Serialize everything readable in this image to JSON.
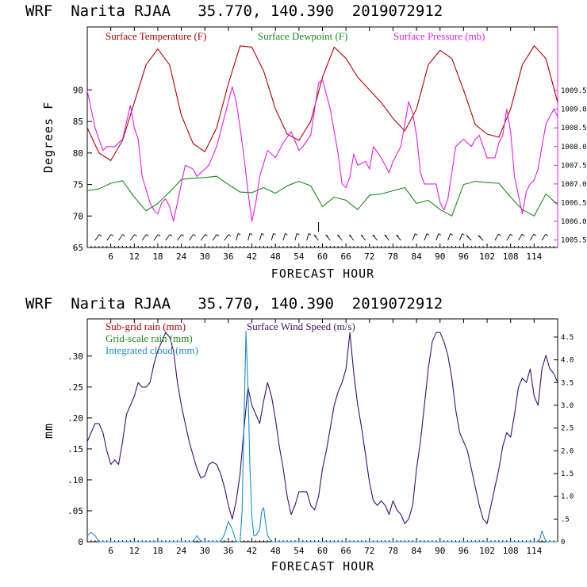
{
  "colors": {
    "temperature": "#b00000",
    "dewpoint": "#1a8a1a",
    "pressure": "#e020e0",
    "subgrid_rain": "#b00000",
    "gridscale_rain": "#1a8a1a",
    "cloud": "#1a8fd0",
    "wind": "#3a1070"
  },
  "chart_data": [
    {
      "type": "line",
      "title": "WRF  Narita RJAA   35.770, 140.390  2019072912",
      "xlabel": "FORECAST HOUR",
      "ylabel": "Degrees F",
      "xlim": [
        0,
        120
      ],
      "ylim": [
        65,
        100
      ],
      "y2lim": [
        1005.3,
        1011.2
      ],
      "xticks": [
        6,
        12,
        18,
        24,
        30,
        36,
        42,
        48,
        54,
        60,
        66,
        72,
        78,
        84,
        90,
        96,
        102,
        108,
        114
      ],
      "xtick_labels": [
        "6",
        "12",
        "18",
        "24",
        "30",
        "36",
        "42",
        "48",
        "54",
        "60",
        "66",
        "72",
        "78",
        "84",
        "90",
        "96",
        "102",
        "108",
        "114"
      ],
      "yticks": [
        65,
        70,
        75,
        80,
        85,
        90
      ],
      "ytick_labels": [
        "65",
        "70",
        "75",
        "80",
        "85",
        "90"
      ],
      "y2ticks": [
        1005.5,
        1006.0,
        1006.5,
        1007.0,
        1007.5,
        1008.0,
        1008.5,
        1009.0,
        1009.5
      ],
      "y2tick_labels": [
        "1005.5",
        "1006.0",
        "1006.5",
        "1007.0",
        "1007.5",
        "1008.0",
        "1008.5",
        "1009.0",
        "1009.5"
      ],
      "legend": [
        "Surface Temperature (F)",
        "Surface Dewpoint (F)",
        "Surface Pressure (mb)"
      ],
      "series": [
        {
          "name": "Surface Temperature (F)",
          "axis": "left",
          "x": [
            0,
            3,
            6,
            9,
            12,
            15,
            18,
            21,
            24,
            27,
            30,
            33,
            36,
            39,
            42,
            45,
            48,
            51,
            54,
            57,
            60,
            63,
            66,
            69,
            72,
            75,
            78,
            81,
            84,
            87,
            90,
            93,
            96,
            99,
            102,
            105,
            108,
            111,
            114,
            117,
            120
          ],
          "y": [
            84,
            80,
            78.8,
            82,
            88,
            94,
            96.5,
            94,
            86,
            81.5,
            80.2,
            84,
            91,
            97,
            96.8,
            93,
            87,
            83,
            82,
            85,
            92,
            96.8,
            95,
            92,
            90,
            88,
            85.5,
            83.5,
            87,
            94,
            96.3,
            95,
            90,
            84.5,
            83,
            82.5,
            87,
            94,
            97,
            95,
            88
          ]
        },
        {
          "name": "Surface Dewpoint (F)",
          "axis": "left",
          "x": [
            0,
            3,
            6,
            9,
            12,
            15,
            18,
            21,
            24,
            27,
            30,
            33,
            36,
            39,
            42,
            45,
            48,
            51,
            54,
            57,
            60,
            63,
            66,
            69,
            72,
            75,
            78,
            81,
            84,
            87,
            90,
            93,
            96,
            99,
            102,
            105,
            108,
            111,
            114,
            117,
            120
          ],
          "y": [
            74,
            74.3,
            75.2,
            75.6,
            73,
            70.8,
            72,
            73.8,
            75.8,
            76,
            76.1,
            76.3,
            75,
            73.8,
            73.7,
            74.5,
            73.6,
            74.8,
            75.5,
            74.8,
            71.5,
            73,
            72.5,
            71,
            73.3,
            73.5,
            74,
            74.5,
            72,
            72.5,
            71,
            70,
            75,
            75.5,
            75.3,
            75.2,
            73,
            71,
            70,
            73.5,
            71.8
          ]
        },
        {
          "name": "Surface Pressure (mb)",
          "axis": "right",
          "x": [
            0,
            1,
            2,
            3,
            4,
            5,
            7,
            9,
            11,
            12,
            13,
            14,
            16,
            17,
            18,
            19,
            20,
            21,
            22,
            24,
            25,
            27,
            28,
            29,
            31,
            33,
            35,
            37,
            38,
            39,
            40,
            41,
            42,
            43,
            44,
            46,
            48,
            50,
            52,
            54,
            55,
            57,
            59,
            60,
            61,
            62,
            64,
            65,
            66,
            67,
            68,
            69,
            71,
            72,
            73,
            75,
            77,
            78,
            80,
            82,
            83,
            84,
            85,
            86,
            88,
            89,
            90,
            91,
            92,
            93,
            94,
            96,
            98,
            99,
            100,
            102,
            104,
            105,
            106,
            107,
            108,
            109,
            110,
            111,
            112,
            113,
            114,
            115,
            116,
            117,
            118,
            119,
            120
          ],
          "y": [
            1009.5,
            1009.0,
            1008.5,
            1008.2,
            1007.9,
            1008.0,
            1008.0,
            1008.2,
            1009.1,
            1008.5,
            1008.2,
            1007.2,
            1006.5,
            1006.3,
            1006.2,
            1006.5,
            1006.6,
            1006.4,
            1006.0,
            1007.0,
            1007.5,
            1007.4,
            1007.2,
            1007.3,
            1007.5,
            1008.0,
            1008.8,
            1009.6,
            1009.2,
            1008.5,
            1007.7,
            1006.8,
            1006.0,
            1006.5,
            1007.2,
            1007.9,
            1007.7,
            1008.1,
            1008.4,
            1007.9,
            1008.0,
            1008.3,
            1009.7,
            1009.8,
            1009.4,
            1009.0,
            1007.8,
            1007.0,
            1006.9,
            1007.2,
            1007.8,
            1007.5,
            1007.6,
            1007.4,
            1008.0,
            1007.7,
            1007.3,
            1007.6,
            1008.0,
            1009.2,
            1008.9,
            1008.3,
            1007.3,
            1007.0,
            1007.0,
            1007.0,
            1006.5,
            1006.3,
            1006.6,
            1007.3,
            1008.0,
            1008.2,
            1008.0,
            1008.2,
            1008.3,
            1007.7,
            1007.7,
            1008.1,
            1008.3,
            1009.0,
            1008.4,
            1007.2,
            1006.7,
            1006.2,
            1006.8,
            1007.0,
            1007.1,
            1007.4,
            1008.0,
            1008.6,
            1008.8,
            1009.0,
            1008.8
          ]
        }
      ],
      "wind_barbs_row": true
    },
    {
      "type": "line",
      "title": "WRF  Narita RJAA   35.770, 140.390  2019072912",
      "xlabel": "FORECAST HOUR",
      "ylabel": "mm",
      "xlim": [
        0,
        120
      ],
      "ylim": [
        0,
        0.36
      ],
      "y2lim": [
        0,
        4.9
      ],
      "xticks": [
        6,
        12,
        18,
        24,
        30,
        36,
        42,
        48,
        54,
        60,
        66,
        72,
        78,
        84,
        90,
        96,
        102,
        108,
        114
      ],
      "xtick_labels": [
        "6",
        "12",
        "18",
        "24",
        "30",
        "36",
        "42",
        "48",
        "54",
        "60",
        "66",
        "72",
        "78",
        "84",
        "90",
        "96",
        "102",
        "108",
        "114"
      ],
      "yticks": [
        0,
        0.05,
        0.1,
        0.15,
        0.2,
        0.25,
        0.3
      ],
      "ytick_labels": [
        "0",
        ".05",
        ".10",
        ".15",
        ".20",
        ".25",
        ".30"
      ],
      "y2ticks": [
        0,
        0.5,
        1.0,
        1.5,
        2.0,
        2.5,
        3.0,
        3.5,
        4.0,
        4.5
      ],
      "y2tick_labels": [
        "0",
        ".5",
        "1.0",
        "1.5",
        "2.0",
        "2.5",
        "3.0",
        "3.5",
        "4.0",
        "4.5"
      ],
      "legend": [
        "Sub-grid rain (mm)",
        "Grid-scale rain (mm)",
        "Integrated cloud (mm)",
        "Surface Wind Speed (m/s)"
      ],
      "series": [
        {
          "name": "Surface Wind Speed (m/s)",
          "axis": "right",
          "x": [
            0,
            1,
            2,
            3,
            4,
            5,
            6,
            7,
            8,
            9,
            10,
            11,
            12,
            13,
            14,
            15,
            16,
            17,
            18,
            19,
            20,
            21,
            22,
            23,
            24,
            25,
            26,
            27,
            28,
            29,
            30,
            31,
            32,
            33,
            34,
            35,
            36,
            37,
            38,
            39,
            40,
            41,
            42,
            43,
            44,
            45,
            46,
            47,
            48,
            49,
            50,
            51,
            52,
            53,
            54,
            55,
            56,
            57,
            58,
            59,
            60,
            61,
            62,
            63,
            64,
            65,
            66,
            67,
            68,
            69,
            70,
            71,
            72,
            73,
            74,
            75,
            76,
            77,
            78,
            79,
            80,
            81,
            82,
            83,
            84,
            85,
            86,
            87,
            88,
            89,
            90,
            91,
            92,
            93,
            94,
            95,
            96,
            97,
            98,
            99,
            100,
            101,
            102,
            103,
            104,
            105,
            106,
            107,
            108,
            109,
            110,
            111,
            112,
            113,
            114,
            115,
            116,
            117,
            118,
            119,
            120
          ],
          "y": [
            2.2,
            2.4,
            2.6,
            2.6,
            2.4,
            2.0,
            1.7,
            1.8,
            1.7,
            2.2,
            2.8,
            3.0,
            3.2,
            3.5,
            3.4,
            3.4,
            3.5,
            3.9,
            4.2,
            4.4,
            4.6,
            4.5,
            4.2,
            3.5,
            3.0,
            2.6,
            2.2,
            1.9,
            1.6,
            1.4,
            1.45,
            1.7,
            1.75,
            1.7,
            1.5,
            1.2,
            0.8,
            0.5,
            0.9,
            1.5,
            2.5,
            3.4,
            3.0,
            2.8,
            2.6,
            3.1,
            3.5,
            3.2,
            2.7,
            2.1,
            1.6,
            1.0,
            0.6,
            0.8,
            1.1,
            1.1,
            1.1,
            0.8,
            0.7,
            1.0,
            1.6,
            2.0,
            2.5,
            3.0,
            3.3,
            3.5,
            3.8,
            4.6,
            3.7,
            3.0,
            2.5,
            1.9,
            1.3,
            0.9,
            0.8,
            0.9,
            0.8,
            0.6,
            0.9,
            0.7,
            0.6,
            0.4,
            0.5,
            0.8,
            1.6,
            2.2,
            3.0,
            3.8,
            4.4,
            4.6,
            4.6,
            4.4,
            4.1,
            3.6,
            2.9,
            2.4,
            2.2,
            2.0,
            1.6,
            1.2,
            0.8,
            0.5,
            0.4,
            0.8,
            1.2,
            1.6,
            2.1,
            2.4,
            2.3,
            2.8,
            3.4,
            3.6,
            3.5,
            3.8,
            3.2,
            3.0,
            3.8,
            4.1,
            3.8,
            3.7,
            3.5
          ]
        },
        {
          "name": "Integrated cloud (mm)",
          "axis": "left",
          "x": [
            0,
            1,
            2,
            3,
            27,
            28,
            29,
            34,
            35,
            36,
            37,
            38,
            39,
            39.5,
            40,
            40.5,
            41,
            41.5,
            42,
            42.5,
            43,
            44,
            44.5,
            45,
            45.5,
            46,
            47,
            60,
            115,
            115.5,
            116,
            117,
            120
          ],
          "y": [
            0.01,
            0.015,
            0.01,
            0.0,
            0.0,
            0.01,
            0.0,
            0.0,
            0.012,
            0.033,
            0.02,
            0.0,
            0.0,
            0.05,
            0.2,
            0.34,
            0.25,
            0.12,
            0.04,
            0.01,
            0.01,
            0.02,
            0.05,
            0.055,
            0.03,
            0.01,
            0.0,
            0.0,
            0.0,
            0.005,
            0.018,
            0.0,
            0.0
          ]
        }
      ]
    }
  ]
}
